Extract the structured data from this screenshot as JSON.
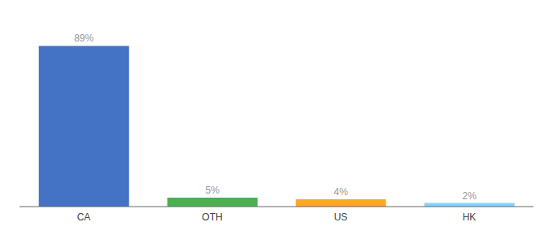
{
  "chart_data": {
    "type": "bar",
    "categories": [
      "CA",
      "OTH",
      "US",
      "HK"
    ],
    "values": [
      89,
      5,
      4,
      2
    ],
    "value_labels": [
      "89%",
      "5%",
      "4%",
      "2%"
    ],
    "colors": [
      "#4472C4",
      "#4CAF50",
      "#FFA726",
      "#81D4FA"
    ],
    "ylim": [
      0,
      100
    ],
    "data_labels": true,
    "tick_labels": "x",
    "grid": false
  }
}
